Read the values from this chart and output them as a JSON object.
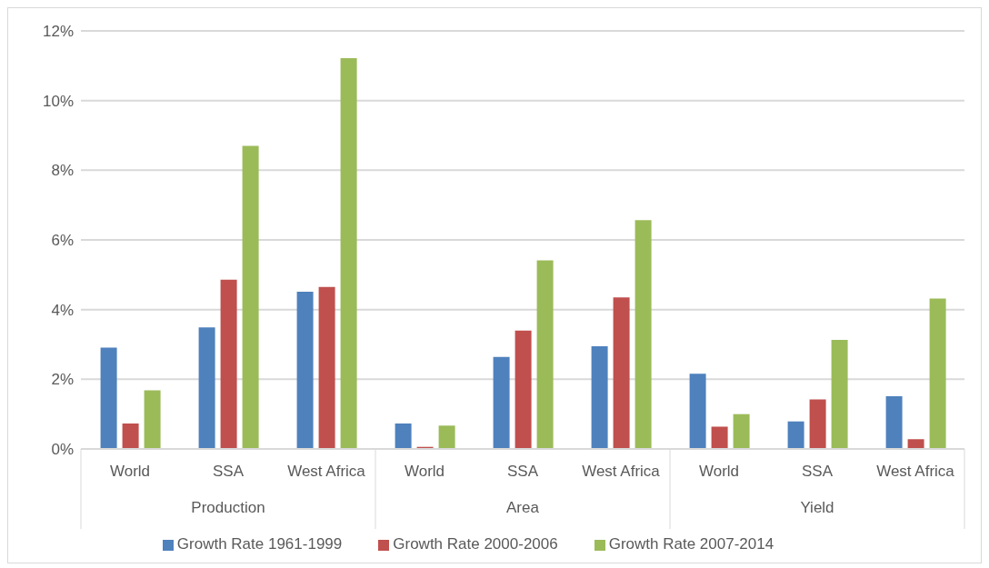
{
  "chart_data": {
    "type": "bar",
    "categories": [
      "World",
      "SSA",
      "West Africa",
      "World",
      "SSA",
      "West Africa",
      "World",
      "SSA",
      "West Africa"
    ],
    "annotations": [
      "Production",
      "Area",
      "Yield"
    ],
    "series": [
      {
        "name": "Growth Rate 1961-1999",
        "color": "#4f81bd",
        "values": [
          2.91,
          3.49,
          4.51,
          0.73,
          2.64,
          2.95,
          2.16,
          0.79,
          1.51
        ]
      },
      {
        "name": "Growth Rate 2000-2006",
        "color": "#c0504d",
        "values": [
          0.73,
          4.86,
          4.65,
          0.06,
          3.4,
          4.35,
          0.64,
          1.42,
          0.28
        ]
      },
      {
        "name": "Growth Rate 2007-2014",
        "color": "#9bbb59",
        "values": [
          1.68,
          8.7,
          11.22,
          0.67,
          5.41,
          6.57,
          1.0,
          3.13,
          4.32
        ]
      }
    ],
    "ylim": [
      0,
      12
    ],
    "yticks": [
      {
        "value": 0,
        "label": "0%"
      },
      {
        "value": 2,
        "label": "2%"
      },
      {
        "value": 4,
        "label": "4%"
      },
      {
        "value": 6,
        "label": "6%"
      },
      {
        "value": 8,
        "label": "8%"
      },
      {
        "value": 10,
        "label": "10%"
      },
      {
        "value": 12,
        "label": "12%"
      }
    ],
    "grid": "y",
    "legend": "bottom"
  }
}
